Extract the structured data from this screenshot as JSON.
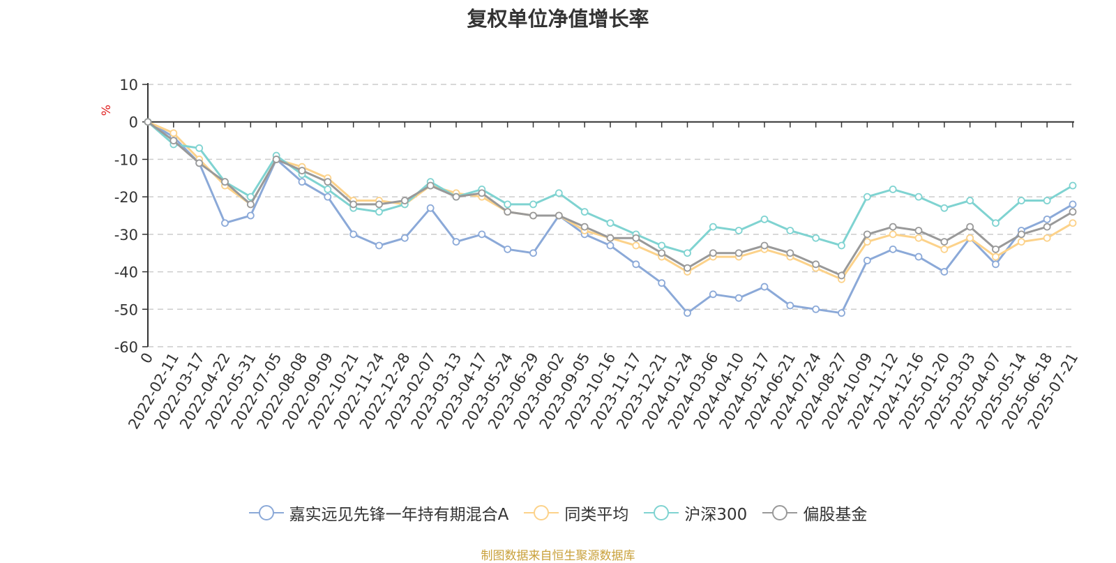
{
  "chart_data": {
    "type": "line",
    "title": "复权单位净值增长率",
    "ylabel": "%",
    "xlabel": "",
    "ylim": [
      -60,
      10
    ],
    "yticks": [
      10,
      0,
      -10,
      -20,
      -30,
      -40,
      -50,
      -60
    ],
    "x_tick_labels": [
      "0",
      "2022-02-11",
      "2022-03-17",
      "2022-04-22",
      "2022-05-31",
      "2022-07-05",
      "2022-08-08",
      "2022-09-09",
      "2022-10-21",
      "2022-11-24",
      "2022-12-28",
      "2023-02-07",
      "2023-03-13",
      "2023-04-17",
      "2023-05-24",
      "2023-06-29",
      "2023-08-02",
      "2023-09-05",
      "2023-10-16",
      "2023-11-17",
      "2023-12-21",
      "2024-01-24",
      "2024-03-06",
      "2024-04-10",
      "2024-05-17",
      "2024-06-21",
      "2024-07-24",
      "2024-08-27",
      "2024-10-09",
      "2024-11-12",
      "2024-12-16",
      "2025-01-20",
      "2025-03-03",
      "2025-04-07",
      "2025-05-14",
      "2025-06-18",
      "2025-07-21"
    ],
    "grid": "horizontal-dashed",
    "legend_position": "bottom-center",
    "series": [
      {
        "name": "嘉实远见先锋一年持有期混合A",
        "color": "#8ba9d8",
        "values": [
          0,
          -4,
          -11,
          -27,
          -25,
          -10,
          -16,
          -20,
          -30,
          -33,
          -31,
          -23,
          -32,
          -30,
          -34,
          -35,
          -25,
          -30,
          -33,
          -38,
          -43,
          -51,
          -46,
          -47,
          -44,
          -49,
          -50,
          -51,
          -37,
          -34,
          -36,
          -40,
          -31,
          -38,
          -29,
          -26,
          -22
        ]
      },
      {
        "name": "同类平均",
        "color": "#fcd28a",
        "values": [
          0,
          -3,
          -10,
          -17,
          -22,
          -10,
          -12,
          -15,
          -21,
          -21,
          -22,
          -17,
          -19,
          -20,
          -24,
          -25,
          -25,
          -29,
          -31,
          -33,
          -36,
          -40,
          -36,
          -36,
          -34,
          -36,
          -39,
          -42,
          -32,
          -30,
          -31,
          -34,
          -31,
          -36,
          -32,
          -31,
          -27
        ]
      },
      {
        "name": "沪深300",
        "color": "#7fd3d1",
        "values": [
          0,
          -6,
          -7,
          -16,
          -20,
          -9,
          -14,
          -18,
          -23,
          -24,
          -22,
          -16,
          -20,
          -18,
          -22,
          -22,
          -19,
          -24,
          -27,
          -30,
          -33,
          -35,
          -28,
          -29,
          -26,
          -29,
          -31,
          -33,
          -20,
          -18,
          -20,
          -23,
          -21,
          -27,
          -21,
          -21,
          -17
        ]
      },
      {
        "name": "偏股基金",
        "color": "#999999",
        "values": [
          0,
          -5,
          -11,
          -16,
          -22,
          -10,
          -13,
          -16,
          -22,
          -22,
          -21,
          -17,
          -20,
          -19,
          -24,
          -25,
          -25,
          -28,
          -31,
          -31,
          -35,
          -39,
          -35,
          -35,
          -33,
          -35,
          -38,
          -41,
          -30,
          -28,
          -29,
          -32,
          -28,
          -34,
          -30,
          -28,
          -24
        ]
      }
    ]
  },
  "source_note": "制图数据来自恒生聚源数据库"
}
